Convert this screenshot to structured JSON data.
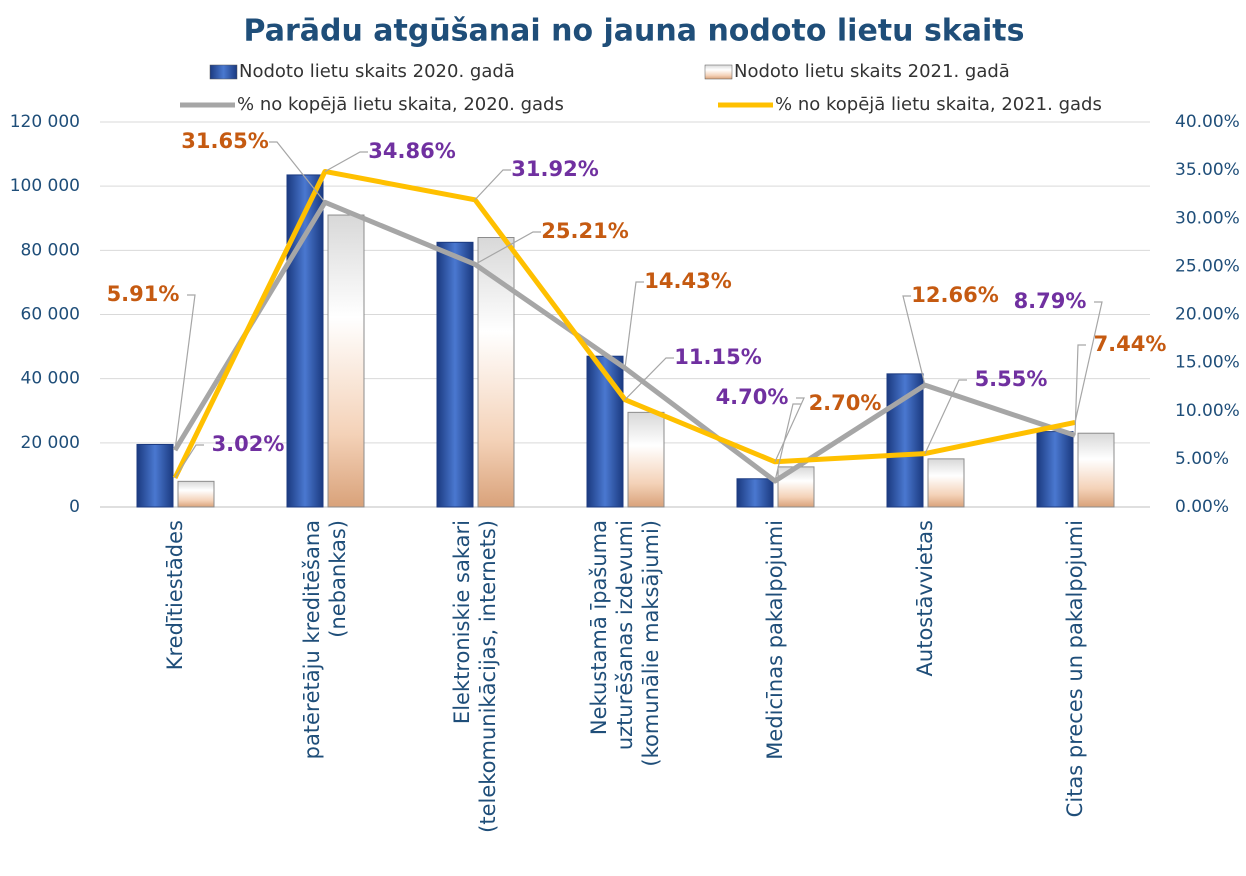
{
  "chart_data": {
    "type": "bar",
    "title": "Parādu atgūšanai no jauna nodoto lietu skaits",
    "categories": [
      "Kredītiestādes",
      "patērētāju kreditēšana\n(nebankas)",
      "Elektroniskie sakari\n(telekomunikācijas, internets)",
      "Nekustamā īpašuma\nuzturēšanas izdevumi\n(komunālie maksājumi)",
      "Medicīnas pakalpojumi",
      "Autostāvvietas",
      "Citas preces un pakalpojumi"
    ],
    "series": [
      {
        "name": "Nodoto lietu skaits 2020. gadā",
        "type": "bar",
        "color": "#2f55a4",
        "values": [
          19500,
          103500,
          82500,
          47000,
          8800,
          41500,
          23500
        ]
      },
      {
        "name": "Nodoto lietu skaits 2021. gadā",
        "type": "bar",
        "color": "#e8c8b0",
        "values": [
          8000,
          91000,
          84000,
          29500,
          12500,
          15000,
          23000
        ]
      },
      {
        "name": "% no kopējā lietu skaita, 2020. gads",
        "type": "line",
        "axis": "y2",
        "color": "#a6a6a6",
        "label_color": "#c55a11",
        "values": [
          5.91,
          31.65,
          25.21,
          14.43,
          2.7,
          12.66,
          7.44
        ],
        "value_labels": [
          "5.91%",
          "31.65%",
          "25.21%",
          "14.43%",
          "2.70%",
          "12.66%",
          "7.44%"
        ]
      },
      {
        "name": "% no kopējā lietu skaita, 2021. gads",
        "type": "line",
        "axis": "y2",
        "color": "#ffc000",
        "label_color": "#7030a0",
        "values": [
          3.02,
          34.86,
          31.92,
          11.15,
          4.7,
          5.55,
          8.79
        ],
        "value_labels": [
          "3.02%",
          "34.86%",
          "31.92%",
          "11.15%",
          "4.70%",
          "5.55%",
          "8.79%"
        ]
      }
    ],
    "ylim": [
      0,
      120000
    ],
    "yticks": [
      0,
      {
        "value": 20000,
        "label": "20 000"
      },
      {
        "value": 40000,
        "label": "40 000"
      },
      {
        "value": 60000,
        "label": "60 000"
      },
      {
        "value": 80000,
        "label": "80 000"
      },
      {
        "value": 100000,
        "label": "100 000"
      },
      {
        "value": 120000,
        "label": "120 000"
      }
    ],
    "y2lim": [
      0,
      40
    ],
    "y2ticks": [
      {
        "value": 0,
        "label": "0.00%"
      },
      {
        "value": 5,
        "label": "5.00%"
      },
      {
        "value": 10,
        "label": "10.00%"
      },
      {
        "value": 15,
        "label": "15.00%"
      },
      {
        "value": 20,
        "label": "20.00%"
      },
      {
        "value": 25,
        "label": "25.00%"
      },
      {
        "value": 30,
        "label": "30.00%"
      },
      {
        "value": 35,
        "label": "35.00%"
      },
      {
        "value": 40,
        "label": "40.00%"
      }
    ],
    "grid": true
  }
}
